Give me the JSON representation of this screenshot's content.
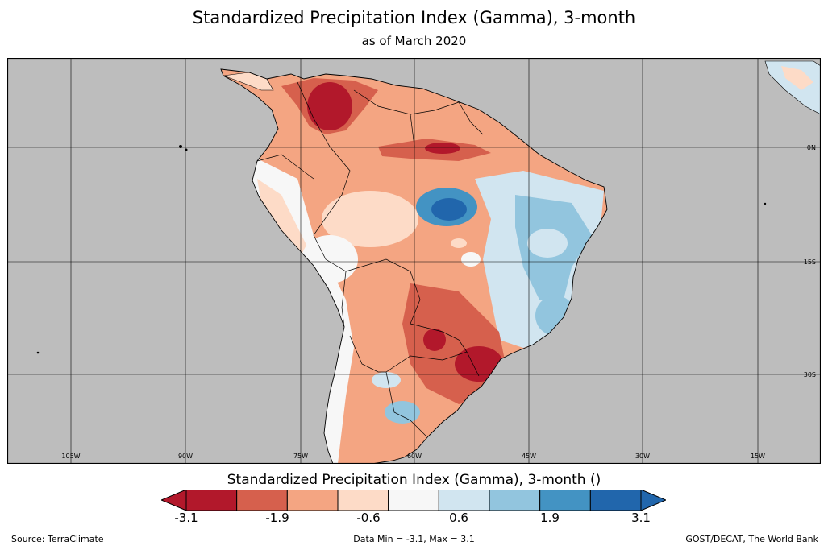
{
  "title": "Standardized Precipitation Index (Gamma), 3-month",
  "subtitle": "as of March 2020",
  "map": {
    "background_color": "#bdbdbd",
    "lon_labels": [
      "105W",
      "90W",
      "75W",
      "60W",
      "45W",
      "30W",
      "15W"
    ],
    "lat_labels": [
      "0N",
      "15S",
      "30S"
    ]
  },
  "colorbar": {
    "title": "Standardized Precipitation Index (Gamma), 3-month ()",
    "colors": [
      "#b2182b",
      "#d6604d",
      "#f4a582",
      "#fddbc7",
      "#f7f7f7",
      "#d1e5f0",
      "#92c5de",
      "#4393c3",
      "#2166ac"
    ],
    "tick_labels": [
      "-3.1",
      "-1.9",
      "-0.6",
      "0.6",
      "1.9",
      "3.1"
    ]
  },
  "footer": {
    "source": "Source: TerraClimate",
    "data_range": "Data Min = -3.1, Max = 3.1",
    "credit": "GOST/DECAT, The World Bank"
  }
}
